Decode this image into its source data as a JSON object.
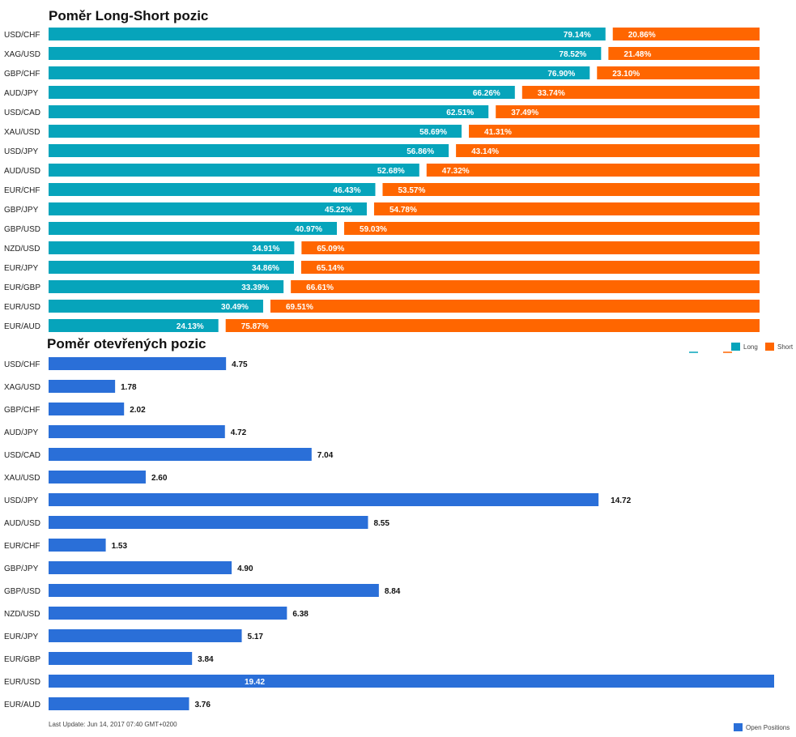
{
  "colors": {
    "long": "#06a4bb",
    "short": "#ff6600",
    "open": "#2a6fd8"
  },
  "chart_data": [
    {
      "type": "bar",
      "stacked": true,
      "orientation": "horizontal",
      "title": "Poměr Long-Short pozic",
      "categories": [
        "USD/CHF",
        "XAG/USD",
        "GBP/CHF",
        "AUD/JPY",
        "USD/CAD",
        "XAU/USD",
        "USD/JPY",
        "AUD/USD",
        "EUR/CHF",
        "GBP/JPY",
        "GBP/USD",
        "NZD/USD",
        "EUR/JPY",
        "EUR/GBP",
        "EUR/USD",
        "EUR/AUD"
      ],
      "series": [
        {
          "name": "Long",
          "values": [
            79.14,
            78.52,
            76.9,
            66.26,
            62.51,
            58.69,
            56.86,
            52.68,
            46.43,
            45.22,
            40.97,
            34.91,
            34.86,
            33.39,
            30.49,
            24.13
          ]
        },
        {
          "name": "Short",
          "values": [
            20.86,
            21.48,
            23.1,
            33.74,
            37.49,
            41.31,
            43.14,
            47.32,
            53.57,
            54.78,
            59.03,
            65.09,
            65.14,
            66.61,
            69.51,
            75.87
          ]
        }
      ],
      "labels": {
        "Long": [
          "79.14%",
          "78.52%",
          "76.90%",
          "66.26%",
          "62.51%",
          "58.69%",
          "56.86%",
          "52.68%",
          "46.43%",
          "45.22%",
          "40.97%",
          "34.91%",
          "34.86%",
          "33.39%",
          "30.49%",
          "24.13%"
        ],
        "Short": [
          "20.86%",
          "21.48%",
          "23.10%",
          "33.74%",
          "37.49%",
          "41.31%",
          "43.14%",
          "47.32%",
          "53.57%",
          "54.78%",
          "59.03%",
          "65.09%",
          "65.14%",
          "66.61%",
          "69.51%",
          "75.87%"
        ]
      },
      "xlim": [
        0,
        100
      ],
      "legend": [
        "Long",
        "Short"
      ],
      "legend_position": "right"
    },
    {
      "type": "bar",
      "orientation": "horizontal",
      "title": "Poměr otevřených pozic",
      "categories": [
        "USD/CHF",
        "XAG/USD",
        "GBP/CHF",
        "AUD/JPY",
        "USD/CAD",
        "XAU/USD",
        "USD/JPY",
        "AUD/USD",
        "EUR/CHF",
        "GBP/JPY",
        "GBP/USD",
        "NZD/USD",
        "EUR/JPY",
        "EUR/GBP",
        "EUR/USD",
        "EUR/AUD"
      ],
      "series": [
        {
          "name": "Open Positions",
          "values": [
            4.75,
            1.78,
            2.02,
            4.72,
            7.04,
            2.6,
            14.72,
            8.55,
            1.53,
            4.9,
            8.84,
            6.38,
            5.17,
            3.84,
            19.42,
            3.76
          ]
        }
      ],
      "labels": [
        "4.75",
        "1.78",
        "2.02",
        "4.72",
        "7.04",
        "2.60",
        "14.72",
        "8.55",
        "1.53",
        "4.90",
        "8.84",
        "6.38",
        "5.17",
        "3.84",
        "19.42",
        "3.76"
      ],
      "xlim": [
        0,
        19.42
      ],
      "legend": [
        "Open Positions"
      ],
      "legend_position": "bottom-right"
    }
  ],
  "footer": {
    "last_update": "Last Update: Jun 14, 2017 07:40 GMT+0200"
  }
}
